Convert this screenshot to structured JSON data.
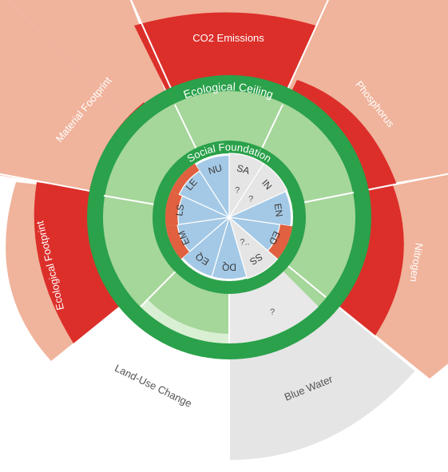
{
  "title": "",
  "rings": {
    "ecological_ceiling": "Ecological Ceiling",
    "social_foundation": "Social Foundation"
  },
  "planetary_boundaries": [
    {
      "key": "co2",
      "label": "CO2 Emissions"
    },
    {
      "key": "phosphorus",
      "label": "Phosphorus"
    },
    {
      "key": "nitrogen",
      "label": "Nitrogen"
    },
    {
      "key": "blue_water",
      "label": "Blue Water",
      "marker": "?"
    },
    {
      "key": "land_use",
      "label": "Land-Use Change"
    },
    {
      "key": "eco_footprint",
      "label": "Ecological Footprint"
    },
    {
      "key": "material",
      "label": "Material Footprint"
    }
  ],
  "social_indicators": [
    {
      "code": "NU",
      "marker": ""
    },
    {
      "code": "SA",
      "marker": "?"
    },
    {
      "code": "IN",
      "marker": "?"
    },
    {
      "code": "EN",
      "marker": ""
    },
    {
      "code": "ED",
      "marker": ""
    },
    {
      "code": "SS",
      "marker": "?.."
    },
    {
      "code": "DQ",
      "marker": ""
    },
    {
      "code": "EQ",
      "marker": ""
    },
    {
      "code": "EM",
      "marker": ""
    },
    {
      "code": "LS",
      "marker": ""
    },
    {
      "code": "LE",
      "marker": ""
    }
  ],
  "colors": {
    "overshoot_dark": "#dc2f2a",
    "overshoot_light": "#f0b39b",
    "ring_green": "#2aa14a",
    "safe_green": "#a5d69a",
    "social_blue": "#a4c9e6",
    "shortfall_red": "#e0603f",
    "unknown_gray": "#e5e5e5"
  }
}
